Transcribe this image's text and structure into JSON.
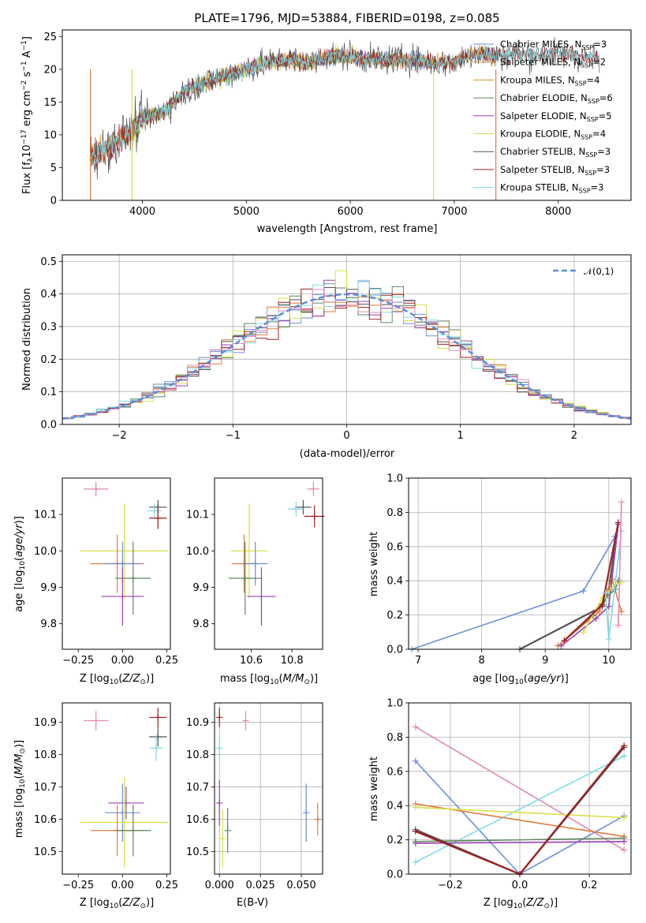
{
  "chart_data": [
    {
      "id": "spectrum",
      "type": "line",
      "title": "PLATE=1796, MJD=53884, FIBERID=0198, z=0.085",
      "xlabel": "wavelength [Angstrom, rest frame]",
      "ylabel": "Flux [f_λ 10^-17 erg cm^-2 s^-1 A^-1]",
      "xlim": [
        3230,
        8700
      ],
      "ylim": [
        0,
        26
      ],
      "xticks": [
        4000,
        5000,
        6000,
        7000,
        8000
      ],
      "yticks": [
        0,
        5,
        10,
        15,
        20,
        25
      ],
      "grid": false,
      "legend_position": "right",
      "continuum_points": [
        [
          3500,
          6.5
        ],
        [
          3700,
          8.5
        ],
        [
          3900,
          10.5
        ],
        [
          4000,
          12.5
        ],
        [
          4200,
          13.5
        ],
        [
          4400,
          16.5
        ],
        [
          4600,
          18.0
        ],
        [
          4800,
          19.0
        ],
        [
          5000,
          20.0
        ],
        [
          5200,
          21.0
        ],
        [
          5400,
          21.5
        ],
        [
          5600,
          21.0
        ],
        [
          5800,
          22.0
        ],
        [
          6000,
          22.0
        ],
        [
          6200,
          21.5
        ],
        [
          6400,
          21.5
        ],
        [
          6600,
          21.5
        ],
        [
          6800,
          21.0
        ],
        [
          7000,
          21.0
        ],
        [
          7200,
          22.5
        ],
        [
          7400,
          22.0
        ],
        [
          7600,
          22.5
        ],
        [
          7800,
          22.0
        ],
        [
          8000,
          22.5
        ],
        [
          8200,
          22.0
        ],
        [
          8400,
          21.5
        ]
      ],
      "series": [
        {
          "name": "Chabrier MILES, N_SSP=3",
          "color": "#6b8fd9",
          "x_range": [
            3500,
            7400
          ]
        },
        {
          "name": "Salpeter MILES, N_SSP=2",
          "color": "#e07b39",
          "x_range": [
            3500,
            7400
          ]
        },
        {
          "name": "Kroupa MILES, N_SSP=4",
          "color": "#d9901f",
          "x_range": [
            3500,
            7400
          ]
        },
        {
          "name": "Chabrier ELODIE, N_SSP=6",
          "color": "#5c8a5c",
          "x_range": [
            3900,
            6800
          ]
        },
        {
          "name": "Salpeter ELODIE, N_SSP=5",
          "color": "#9b3fb3",
          "x_range": [
            3900,
            6800
          ]
        },
        {
          "name": "Kroupa ELODIE, N_SSP=4",
          "color": "#d9e04a",
          "x_range": [
            3900,
            6800
          ]
        },
        {
          "name": "Chabrier STELIB, N_SSP=3",
          "color": "#555555",
          "x_range": [
            3500,
            8400
          ]
        },
        {
          "name": "Salpeter STELIB, N_SSP=3",
          "color": "#a12020",
          "x_range": [
            3500,
            8400
          ]
        },
        {
          "name": "Kroupa STELIB, N_SSP=3",
          "color": "#7fdbe0",
          "x_range": [
            3500,
            8400
          ]
        }
      ]
    },
    {
      "id": "residuals",
      "type": "bar",
      "xlabel": "(data-model)/error",
      "ylabel": "Normed distribution",
      "xlim": [
        -2.5,
        2.5
      ],
      "ylim": [
        0,
        0.52
      ],
      "xticks": [
        -2,
        -1,
        0,
        1,
        2
      ],
      "yticks": [
        0.0,
        0.1,
        0.2,
        0.3,
        0.4,
        0.5
      ],
      "grid": true,
      "bin_width": 0.1,
      "histogram_colors": [
        "#6b8fd9",
        "#e07b39",
        "#5c8a5c",
        "#9b3fb3",
        "#d9e04a",
        "#555555",
        "#a12020",
        "#7fdbe0",
        "#e38ab6"
      ],
      "reference_curve": {
        "name": "𝒩(0,1)",
        "color": "#5b8bd9",
        "style": "dashed"
      },
      "legend_position": "top-right"
    },
    {
      "id": "age-vs-Z",
      "type": "scatter",
      "xlabel": "Z [log10(Z/Z☉)]",
      "ylabel": "age [log10(age/yr)]",
      "xlim": [
        -0.34,
        0.27
      ],
      "ylim": [
        9.73,
        10.2
      ],
      "xticks": [
        -0.25,
        0.0,
        0.25
      ],
      "xtick_labels": [
        "−0.25",
        "0.00",
        "0.25"
      ],
      "yticks": [
        9.8,
        9.9,
        10.0,
        10.1
      ],
      "grid": false,
      "points": [
        {
          "color": "#e38ab6",
          "x": -0.15,
          "xerr": 0.07,
          "y": 10.17,
          "yerr": 0.02
        },
        {
          "color": "#555555",
          "x": 0.2,
          "xerr": 0.05,
          "y": 10.12,
          "yerr": 0.02
        },
        {
          "color": "#7fdbe0",
          "x": 0.18,
          "xerr": 0.04,
          "y": 10.11,
          "yerr": 0.02
        },
        {
          "color": "#a12020",
          "x": 0.2,
          "xerr": 0.05,
          "y": 10.09,
          "yerr": 0.03
        },
        {
          "color": "#d9e04a",
          "x": 0.01,
          "xerr": 0.25,
          "y": 10.0,
          "yerr": 0.13
        },
        {
          "color": "#e07b39",
          "x": -0.03,
          "xerr": 0.15,
          "y": 9.965,
          "yerr": 0.08
        },
        {
          "color": "#6b8fd9",
          "x": 0.0,
          "xerr": 0.1,
          "y": 9.965,
          "yerr": 0.06
        },
        {
          "color": "#5c8a5c",
          "x": 0.06,
          "xerr": 0.1,
          "y": 9.925,
          "yerr": 0.1
        },
        {
          "color": "#9b3fb3",
          "x": 0.0,
          "xerr": 0.12,
          "y": 9.875,
          "yerr": 0.08
        }
      ]
    },
    {
      "id": "age-vs-mass",
      "type": "scatter",
      "xlabel": "mass [log10(M/M☉)]",
      "xlim": [
        10.42,
        10.95
      ],
      "ylim": [
        9.73,
        10.2
      ],
      "xticks": [
        10.6,
        10.8
      ],
      "yticks": [
        9.8,
        9.9,
        10.0,
        10.1
      ],
      "grid": false,
      "points": [
        {
          "color": "#e38ab6",
          "x": 10.905,
          "xerr": 0.03,
          "y": 10.17,
          "yerr": 0.02
        },
        {
          "color": "#555555",
          "x": 10.855,
          "xerr": 0.04,
          "y": 10.12,
          "yerr": 0.02
        },
        {
          "color": "#7fdbe0",
          "x": 10.82,
          "xerr": 0.04,
          "y": 10.115,
          "yerr": 0.02
        },
        {
          "color": "#a12020",
          "x": 10.91,
          "xerr": 0.05,
          "y": 10.095,
          "yerr": 0.03
        },
        {
          "color": "#d9e04a",
          "x": 10.59,
          "xerr": 0.09,
          "y": 10.0,
          "yerr": 0.13
        },
        {
          "color": "#e07b39",
          "x": 10.565,
          "xerr": 0.06,
          "y": 9.965,
          "yerr": 0.08
        },
        {
          "color": "#6b8fd9",
          "x": 10.62,
          "xerr": 0.06,
          "y": 9.965,
          "yerr": 0.06
        },
        {
          "color": "#5c8a5c",
          "x": 10.57,
          "xerr": 0.08,
          "y": 9.925,
          "yerr": 0.1
        },
        {
          "color": "#9b3fb3",
          "x": 10.65,
          "xerr": 0.07,
          "y": 9.875,
          "yerr": 0.08
        }
      ]
    },
    {
      "id": "weight-vs-age",
      "type": "line",
      "xlabel": "age [log10(age/yr)]",
      "ylabel": "mass weight",
      "xlim": [
        6.85,
        10.35
      ],
      "ylim": [
        0,
        1.0
      ],
      "xticks": [
        7,
        8,
        9,
        10
      ],
      "yticks": [
        0.0,
        0.2,
        0.4,
        0.6,
        0.8,
        1.0
      ],
      "grid": true,
      "series": [
        {
          "color": "#6b8fd9",
          "x": [
            6.9,
            9.6,
            10.1
          ],
          "y": [
            0.0,
            0.34,
            0.66
          ]
        },
        {
          "color": "#555555",
          "x": [
            8.6,
            9.9,
            10.0,
            10.15
          ],
          "y": [
            0.0,
            0.25,
            0.35,
            0.74
          ]
        },
        {
          "color": "#e07b39",
          "x": [
            9.2,
            9.85,
            10.05,
            10.2
          ],
          "y": [
            0.02,
            0.22,
            0.41,
            0.22
          ]
        },
        {
          "color": "#9b3fb3",
          "x": [
            9.25,
            9.8,
            10.0,
            10.15
          ],
          "y": [
            0.02,
            0.18,
            0.25,
            0.73
          ]
        },
        {
          "color": "#5c8a5c",
          "x": [
            9.3,
            9.75,
            9.95,
            10.1,
            10.15
          ],
          "y": [
            0.05,
            0.2,
            0.3,
            0.35,
            0.4
          ]
        },
        {
          "color": "#d9e04a",
          "x": [
            9.6,
            9.9,
            10.1,
            10.2
          ],
          "y": [
            0.1,
            0.3,
            0.38,
            0.39
          ]
        },
        {
          "color": "#a12020",
          "x": [
            9.3,
            9.9,
            10.15
          ],
          "y": [
            0.05,
            0.26,
            0.74
          ]
        },
        {
          "color": "#7fdbe0",
          "x": [
            9.95,
            10.0,
            10.2
          ],
          "y": [
            0.33,
            0.06,
            0.69
          ]
        },
        {
          "color": "#e38ab6",
          "x": [
            10.15,
            10.2
          ],
          "y": [
            0.14,
            0.86
          ]
        }
      ]
    },
    {
      "id": "mass-vs-Z",
      "type": "scatter",
      "xlabel": "Z [log10(Z/Z☉)]",
      "ylabel": "mass [log10(M/M☉)]",
      "xlim": [
        -0.34,
        0.27
      ],
      "ylim": [
        10.43,
        10.96
      ],
      "xticks": [
        -0.25,
        0.0,
        0.25
      ],
      "xtick_labels": [
        "−0.25",
        "0.00",
        "0.25"
      ],
      "yticks": [
        10.5,
        10.6,
        10.7,
        10.8,
        10.9
      ],
      "grid": false,
      "points": [
        {
          "color": "#e38ab6",
          "x": -0.15,
          "xerr": 0.07,
          "y": 10.905,
          "yerr": 0.03
        },
        {
          "color": "#a12020",
          "x": 0.2,
          "xerr": 0.05,
          "y": 10.915,
          "yerr": 0.03
        },
        {
          "color": "#555555",
          "x": 0.2,
          "xerr": 0.05,
          "y": 10.855,
          "yerr": 0.03
        },
        {
          "color": "#7fdbe0",
          "x": 0.19,
          "xerr": 0.04,
          "y": 10.82,
          "yerr": 0.04
        },
        {
          "color": "#9b3fb3",
          "x": 0.02,
          "xerr": 0.1,
          "y": 10.65,
          "yerr": 0.05
        },
        {
          "color": "#6b8fd9",
          "x": 0.0,
          "xerr": 0.1,
          "y": 10.62,
          "yerr": 0.09
        },
        {
          "color": "#d9e04a",
          "x": 0.01,
          "xerr": 0.25,
          "y": 10.59,
          "yerr": 0.14
        },
        {
          "color": "#e07b39",
          "x": -0.03,
          "xerr": 0.15,
          "y": 10.565,
          "yerr": 0.08
        },
        {
          "color": "#5c8a5c",
          "x": 0.06,
          "xerr": 0.1,
          "y": 10.565,
          "yerr": 0.08
        }
      ]
    },
    {
      "id": "mass-vs-ebv",
      "type": "scatter",
      "xlabel": "E(B-V)",
      "xlim": [
        -0.003,
        0.063
      ],
      "ylim": [
        10.43,
        10.96
      ],
      "xticks": [
        0.0,
        0.025,
        0.05
      ],
      "xtick_labels": [
        "0.000",
        "0.025",
        "0.050"
      ],
      "yticks": [
        10.5,
        10.6,
        10.7,
        10.8,
        10.9
      ],
      "grid": true,
      "points": [
        {
          "color": "#a12020",
          "x": 0.0,
          "y": 10.915,
          "yerr": 0.03
        },
        {
          "color": "#e38ab6",
          "x": 0.016,
          "y": 10.905,
          "yerr": 0.03
        },
        {
          "color": "#7fdbe0",
          "x": 0.0,
          "y": 10.82,
          "yerr": 0.04
        },
        {
          "color": "#9b3fb3",
          "x": 0.0,
          "y": 10.65,
          "yerr": 0.07
        },
        {
          "color": "#6b8fd9",
          "x": 0.053,
          "y": 10.62,
          "yerr": 0.09
        },
        {
          "color": "#e07b39",
          "x": 0.06,
          "y": 10.6,
          "yerr": 0.05
        },
        {
          "color": "#d9e04a",
          "x": 0.002,
          "y": 10.54,
          "yerr": 0.09
        },
        {
          "color": "#5c8a5c",
          "x": 0.005,
          "y": 10.565,
          "yerr": 0.07
        }
      ]
    },
    {
      "id": "weight-vs-Z",
      "type": "line",
      "xlabel": "Z [log10(Z/Z☉)]",
      "ylabel": "mass weight",
      "xlim": [
        -0.32,
        0.32
      ],
      "ylim": [
        0,
        1.0
      ],
      "xticks": [
        -0.2,
        0.0,
        0.2
      ],
      "xtick_labels": [
        "−0.2",
        "0.0",
        "0.2"
      ],
      "yticks": [
        0.0,
        0.2,
        0.4,
        0.6,
        0.8,
        1.0
      ],
      "grid": true,
      "series": [
        {
          "color": "#e38ab6",
          "x": [
            -0.3,
            0.3
          ],
          "y": [
            0.86,
            0.14
          ]
        },
        {
          "color": "#6b8fd9",
          "x": [
            -0.3,
            0.0,
            0.3
          ],
          "y": [
            0.66,
            0.0,
            0.34
          ]
        },
        {
          "color": "#7fdbe0",
          "x": [
            -0.3,
            0.3
          ],
          "y": [
            0.07,
            0.69
          ]
        },
        {
          "color": "#e07b39",
          "x": [
            -0.3,
            0.3
          ],
          "y": [
            0.41,
            0.22
          ]
        },
        {
          "color": "#d9e04a",
          "x": [
            -0.3,
            0.3
          ],
          "y": [
            0.39,
            0.33
          ]
        },
        {
          "color": "#5c8a5c",
          "x": [
            -0.3,
            0.3
          ],
          "y": [
            0.19,
            0.21
          ]
        },
        {
          "color": "#9b3fb3",
          "x": [
            -0.3,
            0.3
          ],
          "y": [
            0.18,
            0.19
          ]
        },
        {
          "color": "#555555",
          "x": [
            -0.3,
            0.0,
            0.3
          ],
          "y": [
            0.26,
            0.0,
            0.74
          ]
        },
        {
          "color": "#a12020",
          "x": [
            -0.3,
            0.0,
            0.3
          ],
          "y": [
            0.25,
            0.0,
            0.75
          ]
        }
      ]
    }
  ]
}
